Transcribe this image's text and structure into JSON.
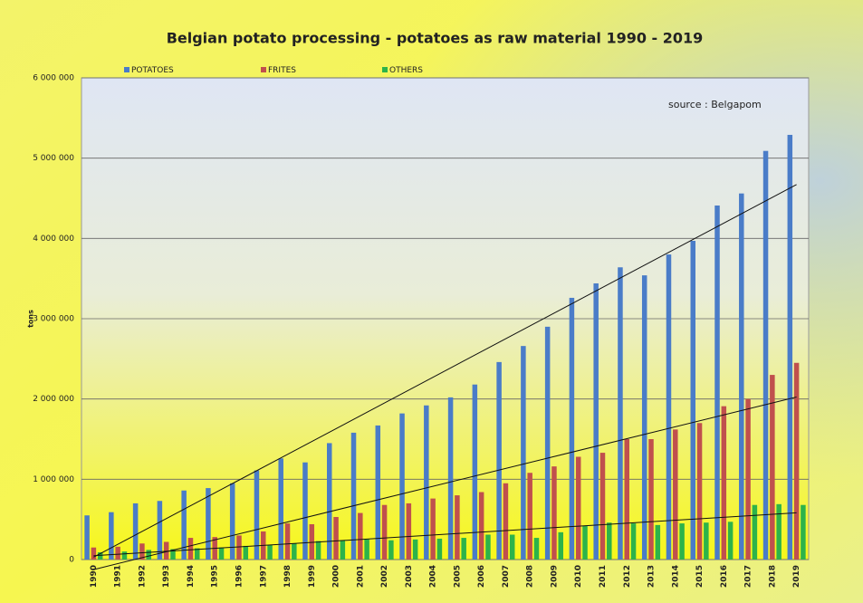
{
  "chart_data": {
    "type": "bar",
    "title": "Belgian potato processing - potatoes as raw material 1990 - 2019",
    "y_label": "tons",
    "annotation": "source : Belgapom",
    "categories": [
      "1990",
      "1991",
      "1992",
      "1993",
      "1994",
      "1995",
      "1996",
      "1997",
      "1998",
      "1999",
      "2000",
      "2001",
      "2002",
      "2003",
      "2004",
      "2005",
      "2006",
      "2007",
      "2008",
      "2009",
      "2010",
      "2011",
      "2012",
      "2013",
      "2014",
      "2015",
      "2016",
      "2017",
      "2018",
      "2019"
    ],
    "series": [
      {
        "name": "POTATOES",
        "color": "#4a7cc8",
        "values": [
          550000,
          590000,
          700000,
          730000,
          860000,
          890000,
          950000,
          1110000,
          1260000,
          1210000,
          1450000,
          1580000,
          1670000,
          1820000,
          1920000,
          2020000,
          2180000,
          2460000,
          2660000,
          2900000,
          3260000,
          3440000,
          3640000,
          3540000,
          3800000,
          3970000,
          4410000,
          4560000,
          5090000,
          5290000
        ]
      },
      {
        "name": "FRITES",
        "color": "#c0504d",
        "values": [
          150000,
          160000,
          200000,
          220000,
          270000,
          280000,
          300000,
          350000,
          450000,
          440000,
          530000,
          580000,
          680000,
          700000,
          760000,
          800000,
          840000,
          950000,
          1080000,
          1160000,
          1280000,
          1330000,
          1500000,
          1500000,
          1620000,
          1700000,
          1910000,
          2000000,
          2300000,
          2450000
        ]
      },
      {
        "name": "OTHERS",
        "color": "#2db34a",
        "values": [
          90000,
          100000,
          120000,
          130000,
          140000,
          150000,
          170000,
          180000,
          200000,
          230000,
          240000,
          250000,
          240000,
          250000,
          260000,
          270000,
          310000,
          310000,
          270000,
          340000,
          420000,
          460000,
          450000,
          430000,
          450000,
          460000,
          470000,
          680000,
          690000,
          680000
        ]
      }
    ],
    "ylim": [
      0,
      6000000
    ],
    "yticks": [
      0,
      {
        "value": 1000000,
        "label": "1 000 000"
      },
      {
        "value": 2000000,
        "label": "2 000 000"
      },
      {
        "value": 3000000,
        "label": "3 000 000"
      },
      {
        "value": 4000000,
        "label": "4 000 000"
      },
      {
        "value": 5000000,
        "label": "5 000 000"
      },
      {
        "value": 6000000,
        "label": "6 000 000"
      }
    ],
    "grid": true,
    "legend": "top",
    "trendline": "linear"
  }
}
